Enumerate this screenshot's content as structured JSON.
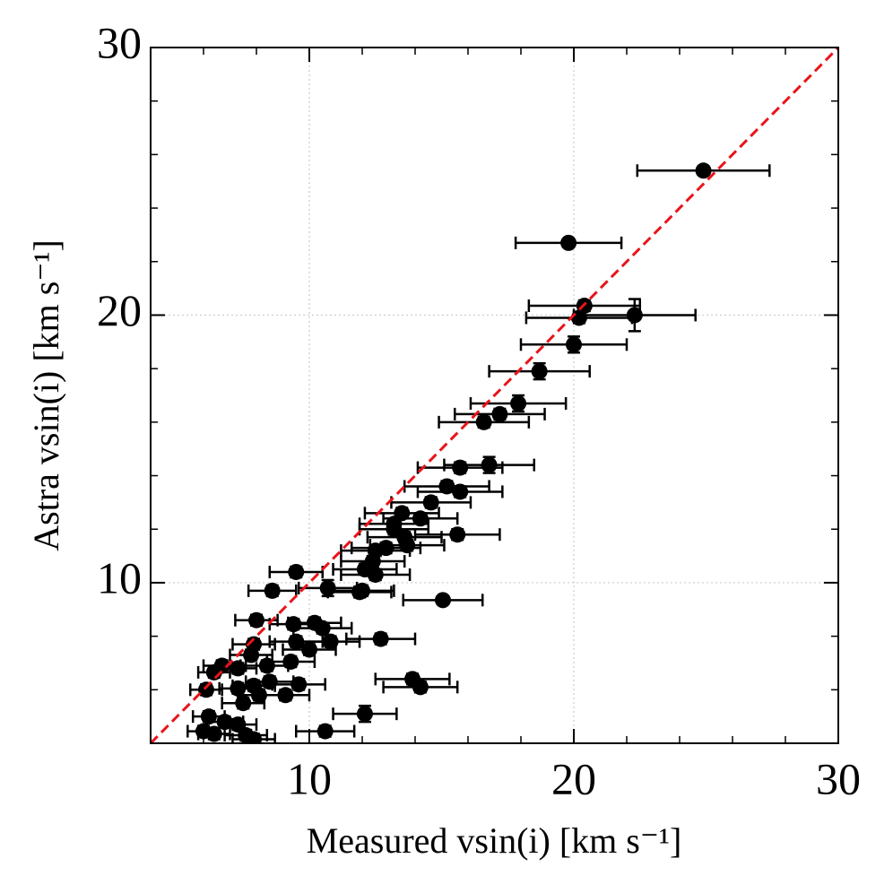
{
  "chart_data": {
    "type": "scatter",
    "xlabel": "Measured vsin(i) [km s⁻¹]",
    "ylabel": "Astra vsin(i) [km s⁻¹]",
    "xlim": [
      4,
      30
    ],
    "ylim": [
      4,
      30
    ],
    "xticks": [
      10,
      20,
      30
    ],
    "yticks": [
      10,
      20,
      30
    ],
    "xminorticks": [
      6,
      8,
      12,
      14,
      16,
      18,
      22,
      24,
      26,
      28
    ],
    "yminorticks": [
      6,
      8,
      12,
      14,
      16,
      18,
      22,
      24,
      26,
      28
    ],
    "grid": true,
    "reference_line": {
      "color": "#e8141a",
      "style": "dashed"
    },
    "series": [
      {
        "color": "#000000",
        "x": [
          24.9,
          19.8,
          22.3,
          20.4,
          20.2,
          20.0,
          18.7,
          17.9,
          17.2,
          16.6,
          16.8,
          15.7,
          15.2,
          15.7,
          14.6,
          14.2,
          13.5,
          13.2,
          13.2,
          15.6,
          13.6,
          13.7,
          12.9,
          12.5,
          12.4,
          12.1,
          12.5,
          9.5,
          10.7,
          11.9,
          12.0,
          8.6,
          15.05,
          8.0,
          9.4,
          10.2,
          10.5,
          12.7,
          10.8,
          9.5,
          7.9,
          10.0,
          7.8,
          9.3,
          8.4,
          7.3,
          6.7,
          6.4,
          13.9,
          14.2,
          9.6,
          8.5,
          7.9,
          7.3,
          6.1,
          9.1,
          8.1,
          7.5,
          12.1,
          6.2,
          6.8,
          7.3,
          10.6,
          6.0,
          6.4,
          7.6,
          7.9
        ],
        "y": [
          25.4,
          22.7,
          20.0,
          20.35,
          19.9,
          18.9,
          17.9,
          16.7,
          16.3,
          16.0,
          14.4,
          14.3,
          13.6,
          13.4,
          13.0,
          12.4,
          12.6,
          12.2,
          12.0,
          11.8,
          11.7,
          11.4,
          11.3,
          11.2,
          10.8,
          10.5,
          10.3,
          10.4,
          9.8,
          9.65,
          9.7,
          9.7,
          9.35,
          8.6,
          8.45,
          8.5,
          8.3,
          7.9,
          7.8,
          7.8,
          7.7,
          7.5,
          7.3,
          7.05,
          6.9,
          6.8,
          6.9,
          6.65,
          6.4,
          6.1,
          6.2,
          6.3,
          6.15,
          6.05,
          6.0,
          5.8,
          5.8,
          5.5,
          5.1,
          5.0,
          4.8,
          4.7,
          4.45,
          4.45,
          4.35,
          4.3,
          4.15
        ],
        "xerr": [
          2.5,
          2.0,
          2.3,
          2.1,
          2.0,
          2.0,
          1.9,
          1.8,
          1.7,
          1.7,
          1.7,
          1.6,
          1.6,
          1.6,
          1.5,
          1.4,
          1.4,
          1.3,
          1.3,
          1.6,
          1.4,
          1.4,
          1.3,
          1.3,
          1.2,
          1.2,
          1.3,
          1.0,
          1.1,
          1.2,
          1.2,
          0.9,
          1.5,
          0.8,
          0.9,
          1.0,
          1.1,
          1.3,
          1.1,
          1.0,
          0.8,
          1.0,
          0.8,
          0.9,
          0.8,
          0.7,
          0.7,
          0.6,
          1.4,
          1.4,
          1.0,
          0.9,
          0.8,
          0.7,
          0.6,
          0.9,
          0.8,
          0.8,
          1.2,
          0.6,
          0.7,
          0.7,
          1.1,
          0.6,
          0.6,
          0.8,
          0.8
        ],
        "yerr": [
          0.1,
          0.1,
          0.6,
          0.2,
          0.2,
          0.3,
          0.3,
          0.3,
          0.2,
          0.2,
          0.3,
          0.2,
          0.2,
          0.2,
          0.2,
          0.2,
          0.2,
          0.2,
          0.2,
          0.2,
          0.2,
          0.2,
          0.2,
          0.2,
          0.2,
          0.2,
          0.2,
          0.2,
          0.3,
          0.2,
          0.2,
          0.2,
          0.1,
          0.2,
          0.2,
          0.2,
          0.2,
          0.2,
          0.2,
          0.2,
          0.2,
          0.2,
          0.2,
          0.2,
          0.2,
          0.2,
          0.2,
          0.2,
          0.2,
          0.2,
          0.2,
          0.2,
          0.2,
          0.2,
          0.2,
          0.2,
          0.2,
          0.2,
          0.3,
          0.2,
          0.2,
          0.2,
          0.2,
          0.2,
          0.2,
          0.2,
          0.2
        ]
      }
    ]
  }
}
